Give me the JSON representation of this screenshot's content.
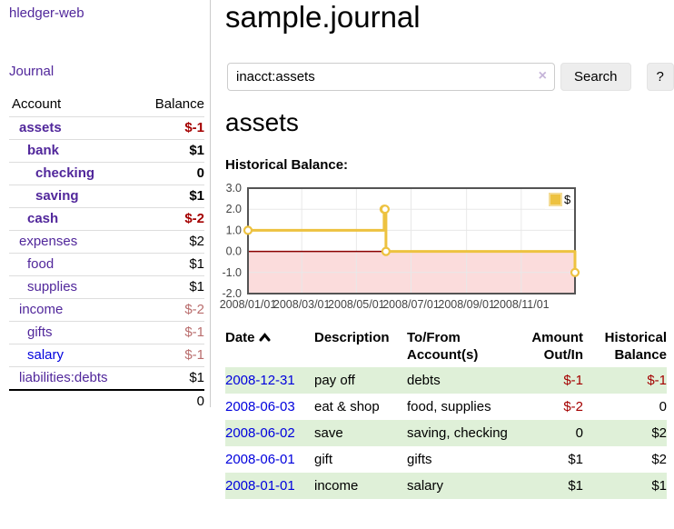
{
  "app": {
    "brand": "hledger-web"
  },
  "sidebar": {
    "journal_label": "Journal",
    "accounts_table": {
      "headers": {
        "account": "Account",
        "balance": "Balance"
      },
      "rows": [
        {
          "name": "assets",
          "balance": "$-1",
          "indent": 1,
          "bold": true,
          "balance_color": "dark-red"
        },
        {
          "name": "bank",
          "balance": "$1",
          "indent": 2,
          "bold": true,
          "balance_color": "black"
        },
        {
          "name": "checking",
          "balance": "0",
          "indent": 3,
          "bold": true,
          "balance_color": "black"
        },
        {
          "name": "saving",
          "balance": "$1",
          "indent": 3,
          "bold": true,
          "balance_color": "black"
        },
        {
          "name": "cash",
          "balance": "$-2",
          "indent": 2,
          "bold": true,
          "balance_color": "dark-red"
        },
        {
          "name": "expenses",
          "balance": "$2",
          "indent": 1,
          "bold": false,
          "balance_color": "black"
        },
        {
          "name": "food",
          "balance": "$1",
          "indent": 2,
          "bold": false,
          "balance_color": "black"
        },
        {
          "name": "supplies",
          "balance": "$1",
          "indent": 2,
          "bold": false,
          "balance_color": "black"
        },
        {
          "name": "income",
          "balance": "$-2",
          "indent": 1,
          "bold": false,
          "balance_color": "muted-red"
        },
        {
          "name": "gifts",
          "balance": "$-1",
          "indent": 2,
          "bold": false,
          "balance_color": "muted-red"
        },
        {
          "name": "salary",
          "balance": "$-1",
          "indent": 2,
          "bold": false,
          "balance_color": "muted-red"
        },
        {
          "name": "liabilities:debts",
          "balance": "$1",
          "indent": 1,
          "bold": false,
          "balance_color": "black"
        }
      ],
      "total": "0"
    }
  },
  "main": {
    "title": "sample.journal",
    "search": {
      "value": "inacct:assets",
      "clear_icon": "×",
      "button_label": "Search",
      "help_label": "?"
    },
    "account_heading": "assets",
    "chart_label": "Historical Balance:",
    "register_table": {
      "headers": {
        "date": "Date",
        "description": "Description",
        "accounts": "To/From Account(s)",
        "amount": "Amount Out/In",
        "balance": "Historical Balance"
      },
      "sort": {
        "column": "date",
        "direction": "ascending"
      },
      "rows": [
        {
          "date": "2008-12-31",
          "description": "pay off",
          "accounts": "debts",
          "amount": "$-1",
          "balance": "$-1"
        },
        {
          "date": "2008-06-03",
          "description": "eat & shop",
          "accounts": "food, supplies",
          "amount": "$-2",
          "balance": "0"
        },
        {
          "date": "2008-06-02",
          "description": "save",
          "accounts": "saving, checking",
          "amount": "0",
          "balance": "$2"
        },
        {
          "date": "2008-06-01",
          "description": "gift",
          "accounts": "gifts",
          "amount": "$1",
          "balance": "$2"
        },
        {
          "date": "2008-01-01",
          "description": "income",
          "accounts": "salary",
          "amount": "$1",
          "balance": "$1"
        }
      ]
    }
  },
  "chart_data": {
    "type": "line",
    "style": "step-after",
    "title": "Historical Balance:",
    "series": [
      {
        "name": "$",
        "color": "#edc240",
        "points": [
          {
            "date": "2008-01-01",
            "value": 1
          },
          {
            "date": "2008-06-01",
            "value": 2
          },
          {
            "date": "2008-06-02",
            "value": 2
          },
          {
            "date": "2008-06-03",
            "value": 0
          },
          {
            "date": "2008-12-31",
            "value": -1
          }
        ]
      }
    ],
    "x_range": [
      "2008-01-01",
      "2008-12-31"
    ],
    "x_ticks": [
      "2008/01/01",
      "2008/03/01",
      "2008/05/01",
      "2008/07/01",
      "2008/09/01",
      "2008/11/01"
    ],
    "y_ticks": [
      3.0,
      2.0,
      1.0,
      0.0,
      -1.0,
      -2.0
    ],
    "ylim": [
      -2,
      3
    ],
    "grid": true,
    "legend_position": "top-right",
    "colors": {
      "negative_region": "#fbdcdc",
      "zero_line": "#8b0000",
      "grid_line": "#e8e8e8",
      "plot_border": "#545454",
      "tick_label": "#444444"
    }
  }
}
